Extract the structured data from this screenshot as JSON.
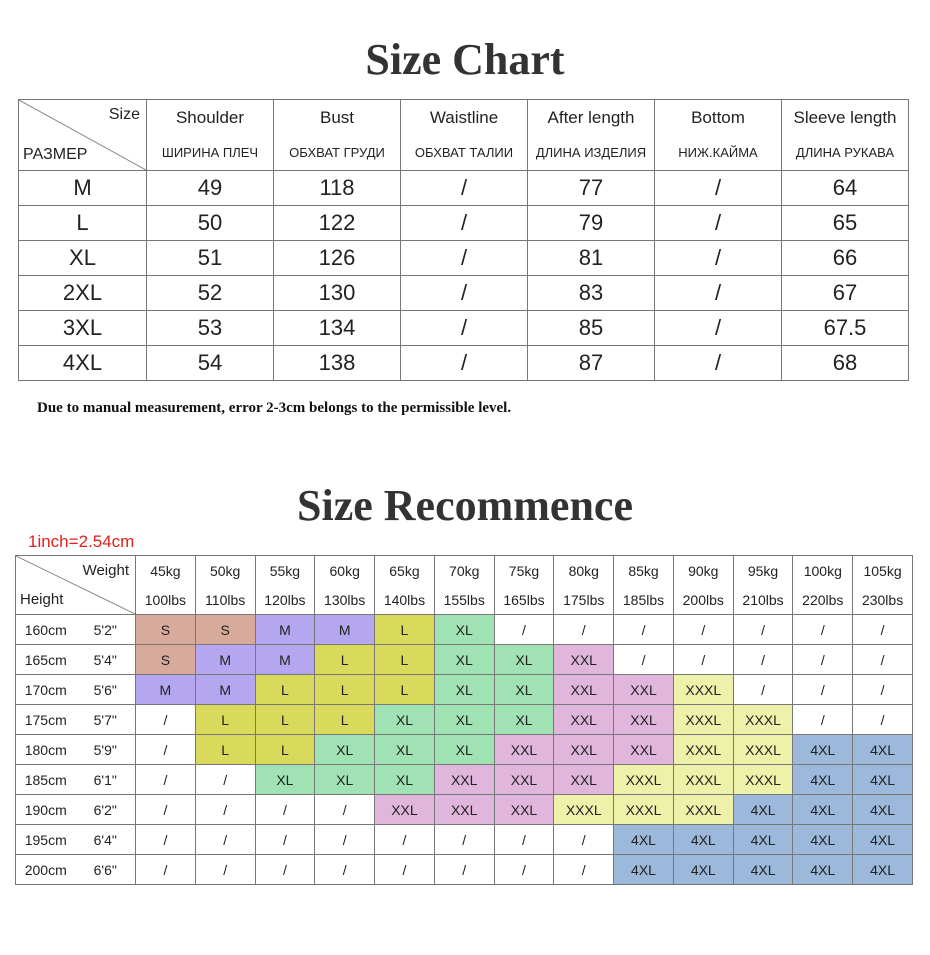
{
  "title": "Size Chart",
  "size_table": {
    "corner": {
      "top": "Size",
      "bottom": "РАЗМЕР"
    },
    "columns": [
      {
        "en": "Shoulder",
        "ru": "ШИРИНА ПЛЕЧ"
      },
      {
        "en": "Bust",
        "ru": "ОБХВАТ ГРУДИ"
      },
      {
        "en": "Waistline",
        "ru": "ОБХВАТ ТАЛИИ"
      },
      {
        "en": "After length",
        "ru": "ДЛИНА ИЗДЕЛИЯ"
      },
      {
        "en": "Bottom",
        "ru": "НИЖ.КАЙМА"
      },
      {
        "en": "Sleeve length",
        "ru": "ДЛИНА РУКАВА"
      }
    ],
    "rows": [
      [
        "M",
        49,
        118,
        "/",
        77,
        "/",
        64
      ],
      [
        "L",
        50,
        122,
        "/",
        79,
        "/",
        65
      ],
      [
        "XL",
        51,
        126,
        "/",
        81,
        "/",
        66
      ],
      [
        "2XL",
        52,
        130,
        "/",
        83,
        "/",
        67
      ],
      [
        "3XL",
        53,
        134,
        "/",
        85,
        "/",
        67.5
      ],
      [
        "4XL",
        54,
        138,
        "/",
        87,
        "/",
        68
      ]
    ]
  },
  "note": "Due to manual measurement, error 2-3cm belongs to the permissible level.",
  "recommend_title": "Size Recommence",
  "unit_note": "1inch=2.54cm",
  "recommend_table": {
    "corner": {
      "top": "Weight",
      "bottom": "Height"
    },
    "kg": [
      "45kg",
      "50kg",
      "55kg",
      "60kg",
      "65kg",
      "70kg",
      "75kg",
      "80kg",
      "85kg",
      "90kg",
      "95kg",
      "100kg",
      "105kg"
    ],
    "lbs": [
      "100lbs",
      "110lbs",
      "120lbs",
      "130lbs",
      "140lbs",
      "155lbs",
      "165lbs",
      "175lbs",
      "185lbs",
      "200lbs",
      "210lbs",
      "220lbs",
      "230lbs"
    ],
    "colors": {
      "S": "#d8aa9b",
      "M": "#b4a7f0",
      "L": "#d9da5c",
      "XL": "#a0e2b3",
      "XXL": "#e0b6dd",
      "XXXL": "#eef1a9",
      "4XL": "#9cb9dc"
    },
    "rows": [
      {
        "cm": "160cm",
        "ft": "5'2\"",
        "sizes": [
          "S",
          "S",
          "M",
          "M",
          "L",
          "XL",
          "/",
          "/",
          "/",
          "/",
          "/",
          "/",
          "/"
        ]
      },
      {
        "cm": "165cm",
        "ft": "5'4\"",
        "sizes": [
          "S",
          "M",
          "M",
          "L",
          "L",
          "XL",
          "XL",
          "XXL",
          "/",
          "/",
          "/",
          "/",
          "/"
        ]
      },
      {
        "cm": "170cm",
        "ft": "5'6\"",
        "sizes": [
          "M",
          "M",
          "L",
          "L",
          "L",
          "XL",
          "XL",
          "XXL",
          "XXL",
          "XXXL",
          "/",
          "/",
          "/"
        ]
      },
      {
        "cm": "175cm",
        "ft": "5'7\"",
        "sizes": [
          "/",
          "L",
          "L",
          "L",
          "XL",
          "XL",
          "XL",
          "XXL",
          "XXL",
          "XXXL",
          "XXXL",
          "/",
          "/"
        ]
      },
      {
        "cm": "180cm",
        "ft": "5'9\"",
        "sizes": [
          "/",
          "L",
          "L",
          "XL",
          "XL",
          "XL",
          "XXL",
          "XXL",
          "XXL",
          "XXXL",
          "XXXL",
          "4XL",
          "4XL"
        ]
      },
      {
        "cm": "185cm",
        "ft": "6'1\"",
        "sizes": [
          "/",
          "/",
          "XL",
          "XL",
          "XL",
          "XXL",
          "XXL",
          "XXL",
          "XXXL",
          "XXXL",
          "XXXL",
          "4XL",
          "4XL"
        ]
      },
      {
        "cm": "190cm",
        "ft": "6'2\"",
        "sizes": [
          "/",
          "/",
          "/",
          "/",
          "XXL",
          "XXL",
          "XXL",
          "XXXL",
          "XXXL",
          "XXXL",
          "4XL",
          "4XL",
          "4XL"
        ]
      },
      {
        "cm": "195cm",
        "ft": "6'4\"",
        "sizes": [
          "/",
          "/",
          "/",
          "/",
          "/",
          "/",
          "/",
          "/",
          "4XL",
          "4XL",
          "4XL",
          "4XL",
          "4XL"
        ]
      },
      {
        "cm": "200cm",
        "ft": "6'6\"",
        "sizes": [
          "/",
          "/",
          "/",
          "/",
          "/",
          "/",
          "/",
          "/",
          "4XL",
          "4XL",
          "4XL",
          "4XL",
          "4XL"
        ]
      }
    ]
  }
}
